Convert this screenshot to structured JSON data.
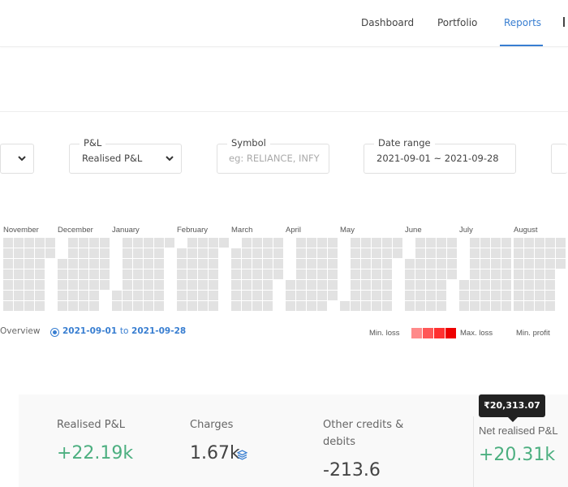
{
  "nav": {
    "items": [
      {
        "label": "Dashboard"
      },
      {
        "label": "Portfolio"
      },
      {
        "label": "Reports",
        "active": true
      }
    ],
    "accent": "#387ed1"
  },
  "filters": {
    "segment": {
      "value": ""
    },
    "pnl": {
      "label": "P&L",
      "value": "Realised P&L"
    },
    "symbol": {
      "label": "Symbol",
      "placeholder": "eg: RELIANCE, INFY"
    },
    "date_range": {
      "label": "Date range",
      "value": "2021-09-01 ~ 2021-09-28"
    }
  },
  "heatmap": {
    "months": [
      {
        "label": "November",
        "year": 2020,
        "month": 11
      },
      {
        "label": "December",
        "year": 2020,
        "month": 12
      },
      {
        "label": "January",
        "year": 2021,
        "month": 1
      },
      {
        "label": "February",
        "year": 2021,
        "month": 2
      },
      {
        "label": "March",
        "year": 2021,
        "month": 3
      },
      {
        "label": "April",
        "year": 2021,
        "month": 4
      },
      {
        "label": "May",
        "year": 2021,
        "month": 5
      },
      {
        "label": "June",
        "year": 2021,
        "month": 6
      },
      {
        "label": "July",
        "year": 2021,
        "month": 7
      },
      {
        "label": "August",
        "year": 2021,
        "month": 8
      }
    ],
    "empty_color": "#e2e2e2",
    "overview_label": "Overview",
    "range_from": "2021-09-01",
    "range_to_word": "to",
    "range_to": "2021-09-28",
    "legend": {
      "min_loss": "Min. loss",
      "max_loss": "Max. loss",
      "min_profit": "Min. profit",
      "loss_colors": [
        "#ff8a8a",
        "#ff5757",
        "#ff3030",
        "#ee0000"
      ]
    }
  },
  "summary": {
    "realised": {
      "label": "Realised P&L",
      "value": "+22.19k"
    },
    "charges": {
      "label": "Charges",
      "value": "1.67k",
      "icon": "layers-icon"
    },
    "other": {
      "label": "Other credits & debits",
      "value": "-213.6"
    },
    "net": {
      "label": "Net realised P&L",
      "value": "+20.31k",
      "tooltip": "₹20,313.07"
    },
    "positive_color": "#4caf80"
  }
}
